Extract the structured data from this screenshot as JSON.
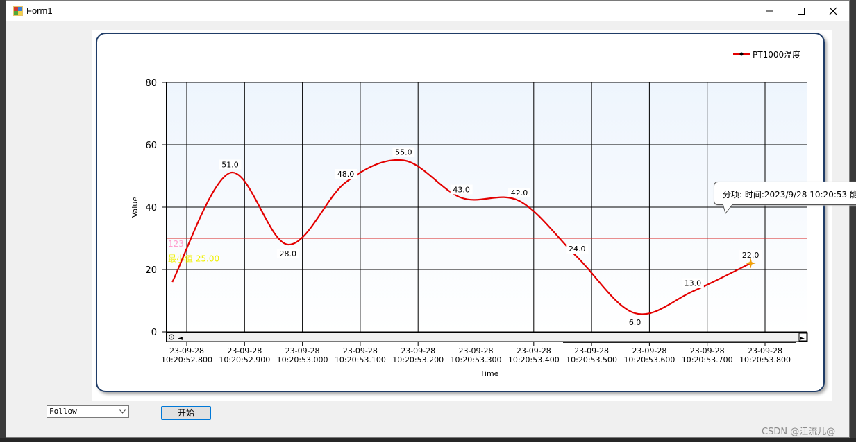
{
  "window": {
    "title": "Form1",
    "icon": "winforms-app-icon",
    "controls": [
      "minimize-icon",
      "maximize-icon",
      "close-icon"
    ]
  },
  "chart_data": {
    "type": "line",
    "title": "",
    "xlabel": "Time",
    "ylabel": "Value",
    "ylim": [
      0,
      80
    ],
    "yticks": [
      "0",
      "20",
      "40",
      "60",
      "80"
    ],
    "y_tick_values": [
      0,
      20,
      40,
      60,
      80
    ],
    "xtick_labels": [
      [
        "23-09-28",
        "10:20:52.800"
      ],
      [
        "23-09-28",
        "10:20:52.900"
      ],
      [
        "23-09-28",
        "10:20:53.000"
      ],
      [
        "23-09-28",
        "10:20:53.100"
      ],
      [
        "23-09-28",
        "10:20:53.200"
      ],
      [
        "23-09-28",
        "10:20:53.300"
      ],
      [
        "23-09-28",
        "10:20:53.400"
      ],
      [
        "23-09-28",
        "10:20:53.500"
      ],
      [
        "23-09-28",
        "10:20:53.600"
      ],
      [
        "23-09-28",
        "10:20:53.700"
      ],
      [
        "23-09-28",
        "10:20:53.800"
      ]
    ],
    "grid": true,
    "legend_position": "top-right",
    "series": [
      {
        "name": "PT1000温度",
        "color": "#e30000",
        "smooth": true,
        "x": [
          "10:20:52.775",
          "10:20:52.875",
          "10:20:52.975",
          "10:20:53.075",
          "10:20:53.175",
          "10:20:53.275",
          "10:20:53.375",
          "10:20:53.475",
          "10:20:53.575",
          "10:20:53.675",
          "10:20:53.775"
        ],
        "values": [
          16,
          51,
          28,
          48,
          55,
          43,
          42,
          24,
          6,
          13,
          22
        ],
        "labels": [
          "",
          "51.0",
          "28.0",
          "48.0",
          "55.0",
          "43.0",
          "42.0",
          "24.0",
          "6.0",
          "13.0",
          "22.0"
        ],
        "highlight_index": 10,
        "highlight_color": "#f5a300"
      }
    ],
    "reference_lines": [
      {
        "value": 30,
        "label": "123",
        "color": "#d82020",
        "label_color": "#ff9ecf"
      },
      {
        "value": 25,
        "label": "最小值 25.00",
        "color": "#d82020",
        "label_color": "#f0f000"
      }
    ],
    "scrollbar": {
      "left_arrow": "◄",
      "right_arrow": "►",
      "zoom_reset_icon": "zoom-reset-icon"
    }
  },
  "tooltip": {
    "text": "分项:  时间:2023/9/28 10:20:53  能"
  },
  "controls": {
    "mode_select_value": "Follow",
    "start_label": "开始"
  },
  "watermark": "CSDN @江流儿@"
}
